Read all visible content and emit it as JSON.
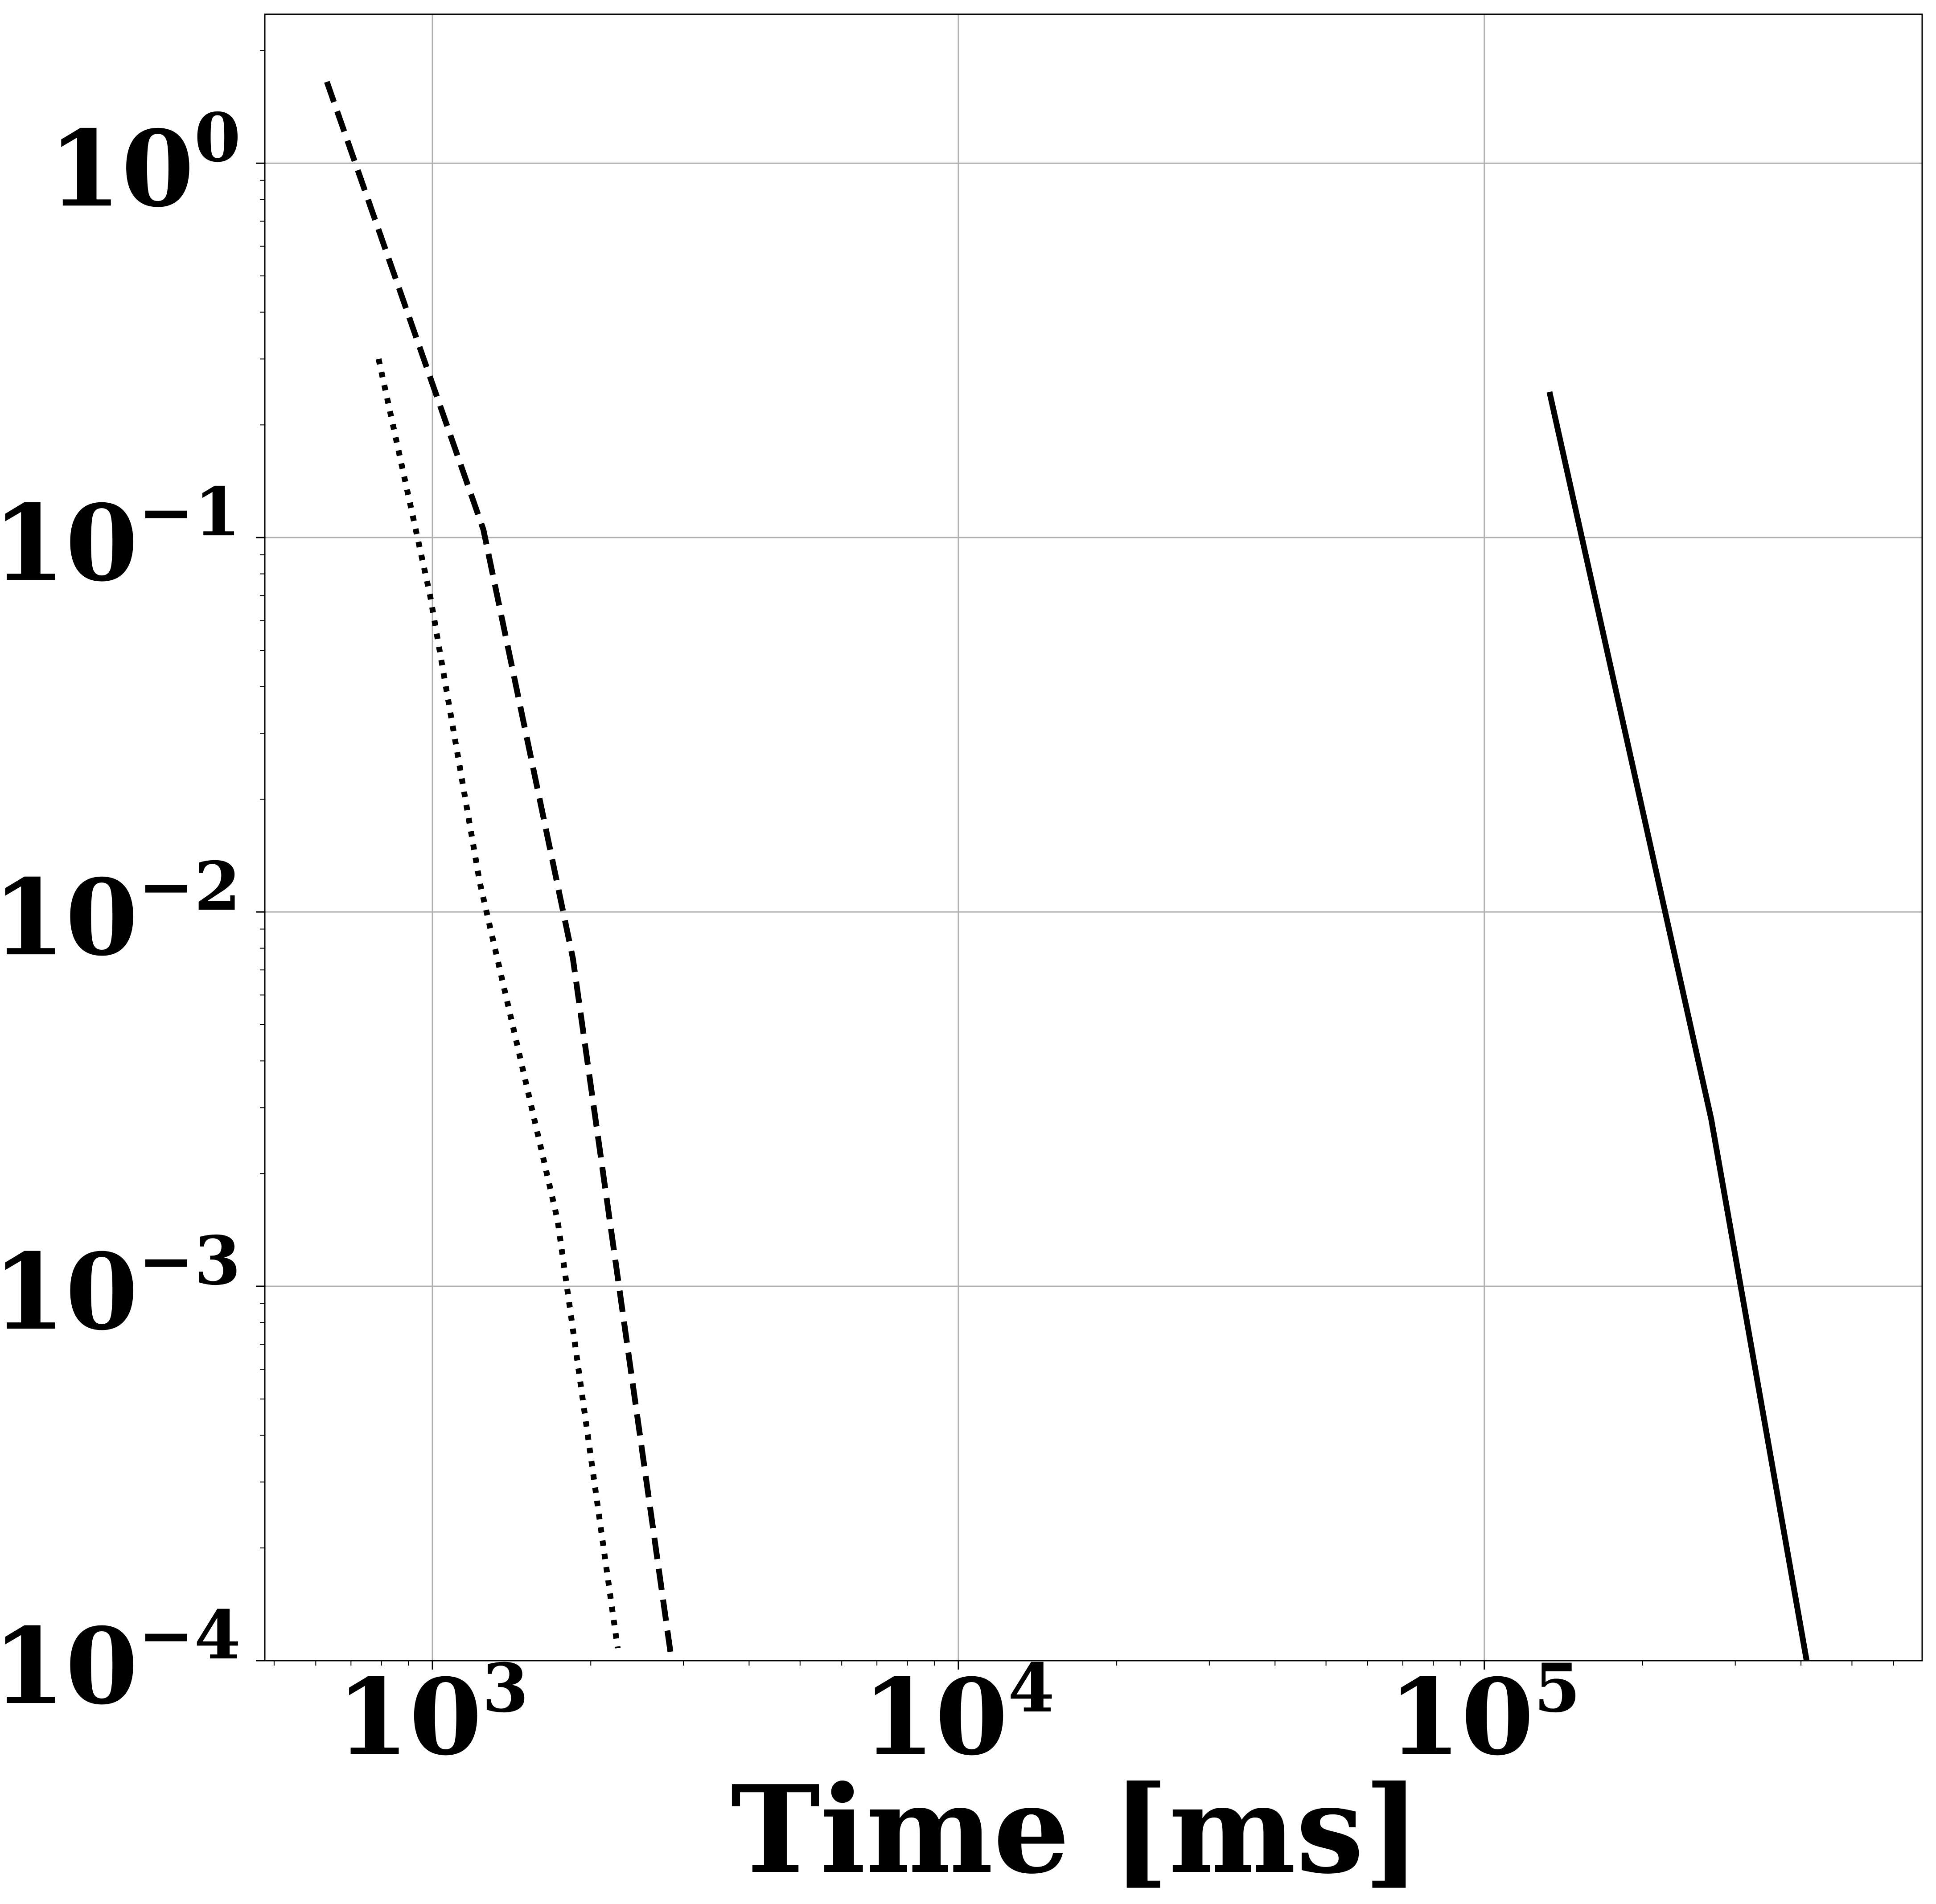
{
  "chart_data": {
    "type": "line",
    "title": "",
    "xlabel": "Time [ms]",
    "ylabel": "",
    "x_scale": "log",
    "y_scale": "log",
    "xlim": [
      480,
      680000
    ],
    "ylim": [
      0.0001,
      2.5
    ],
    "grid": true,
    "x_ticks": [
      {
        "value": 1000,
        "base": "10",
        "exp": "3"
      },
      {
        "value": 10000,
        "base": "10",
        "exp": "4"
      },
      {
        "value": 100000,
        "base": "10",
        "exp": "5"
      }
    ],
    "y_ticks": [
      {
        "value": 1,
        "base": "10",
        "exp": "0"
      },
      {
        "value": 0.1,
        "base": "10",
        "exp": "−1"
      },
      {
        "value": 0.01,
        "base": "10",
        "exp": "−2"
      },
      {
        "value": 0.001,
        "base": "10",
        "exp": "−3"
      },
      {
        "value": 0.0001,
        "base": "10",
        "exp": "−4"
      }
    ],
    "series": [
      {
        "style": "dashed",
        "color": "#000000",
        "x": [
          630,
          1250,
          1850,
          2850
        ],
        "y": [
          1.65,
          0.105,
          0.0075,
          0.0001
        ]
      },
      {
        "style": "dotted",
        "color": "#000000",
        "x": [
          790,
          990,
          1230,
          1730,
          2250
        ],
        "y": [
          0.3,
          0.07,
          0.012,
          0.0015,
          0.000108
        ]
      },
      {
        "style": "solid",
        "color": "#000000",
        "x": [
          133000,
          270000,
          410000
        ],
        "y": [
          0.245,
          0.0028,
          0.0001
        ]
      }
    ]
  }
}
